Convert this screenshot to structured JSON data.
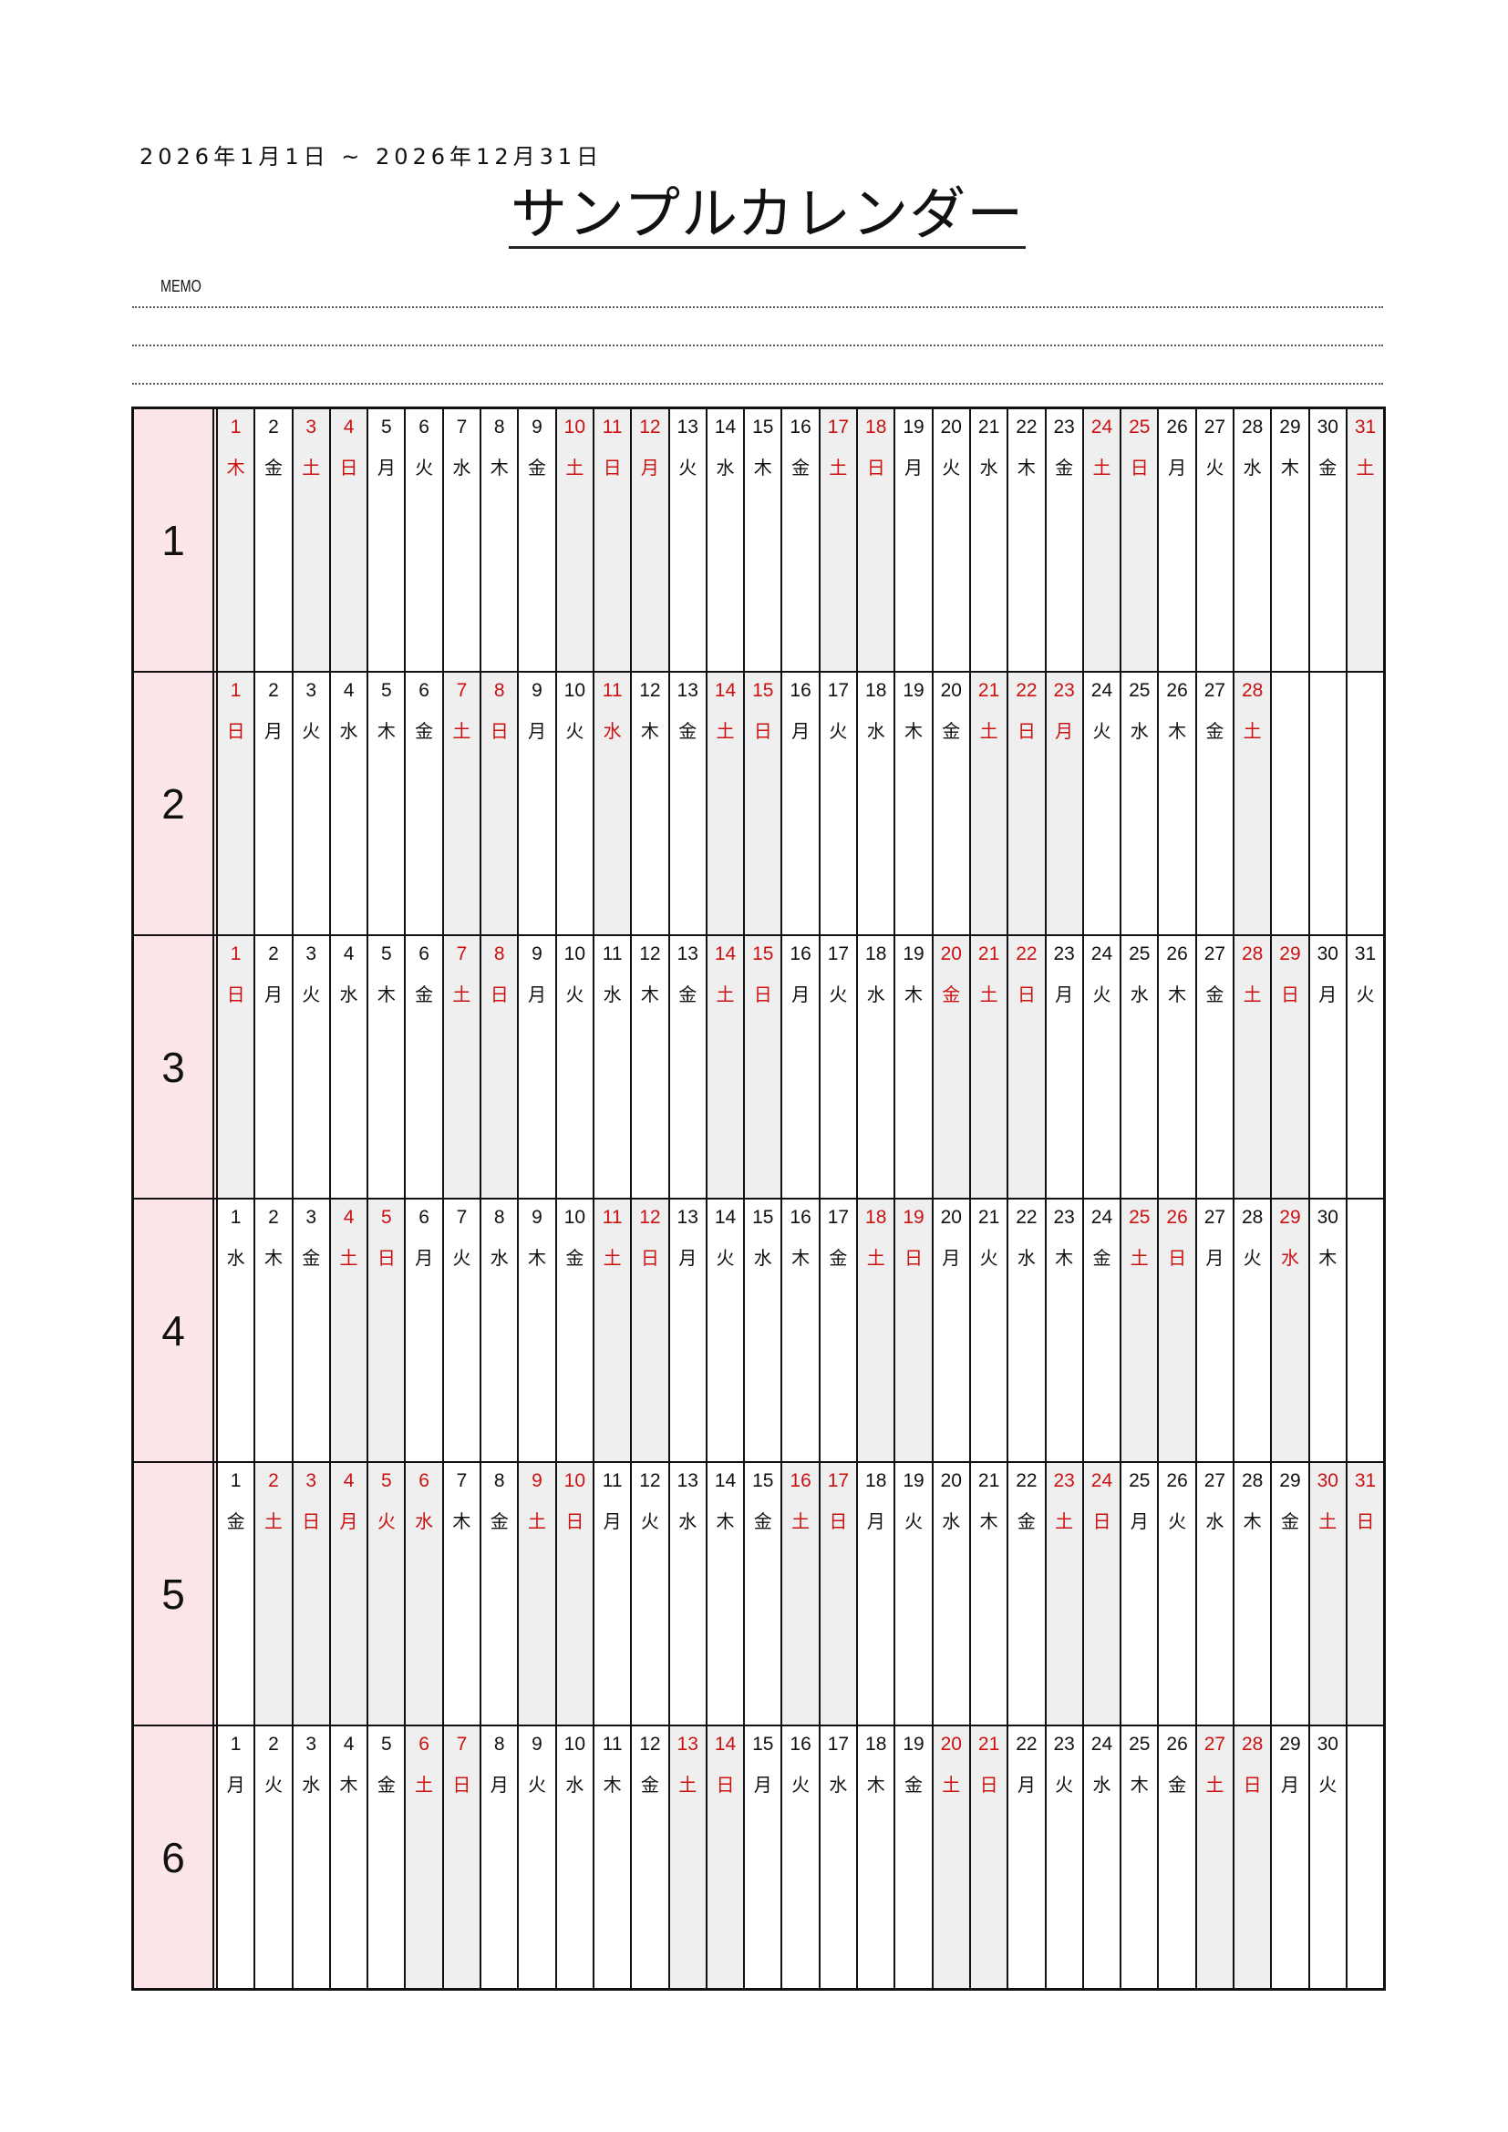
{
  "header": {
    "date_range": "2026年1月1日 ~ 2026年12月31日",
    "title": "サンプルカレンダー",
    "memo_label": "MEMO"
  },
  "colors": {
    "holiday_text": "#cc1111",
    "holiday_bg": "#efefef",
    "month_bg": "#fde6ea"
  },
  "weekday_names": [
    "日",
    "月",
    "火",
    "水",
    "木",
    "金",
    "土"
  ],
  "months": [
    {
      "label": "1",
      "days": 31,
      "first_weekday_index": 4,
      "red_days": [
        1,
        3,
        4,
        10,
        11,
        12,
        17,
        18,
        24,
        25,
        31
      ]
    },
    {
      "label": "2",
      "days": 28,
      "first_weekday_index": 0,
      "red_days": [
        1,
        7,
        8,
        11,
        14,
        15,
        21,
        22,
        23,
        28
      ]
    },
    {
      "label": "3",
      "days": 31,
      "first_weekday_index": 0,
      "red_days": [
        1,
        7,
        8,
        14,
        15,
        20,
        21,
        22,
        28,
        29
      ]
    },
    {
      "label": "4",
      "days": 30,
      "first_weekday_index": 3,
      "red_days": [
        4,
        5,
        11,
        12,
        18,
        19,
        25,
        26,
        29
      ]
    },
    {
      "label": "5",
      "days": 31,
      "first_weekday_index": 5,
      "red_days": [
        2,
        3,
        4,
        5,
        6,
        9,
        10,
        16,
        17,
        23,
        24,
        30,
        31
      ]
    },
    {
      "label": "6",
      "days": 30,
      "first_weekday_index": 1,
      "red_days": [
        6,
        7,
        13,
        14,
        20,
        21,
        27,
        28
      ]
    }
  ]
}
